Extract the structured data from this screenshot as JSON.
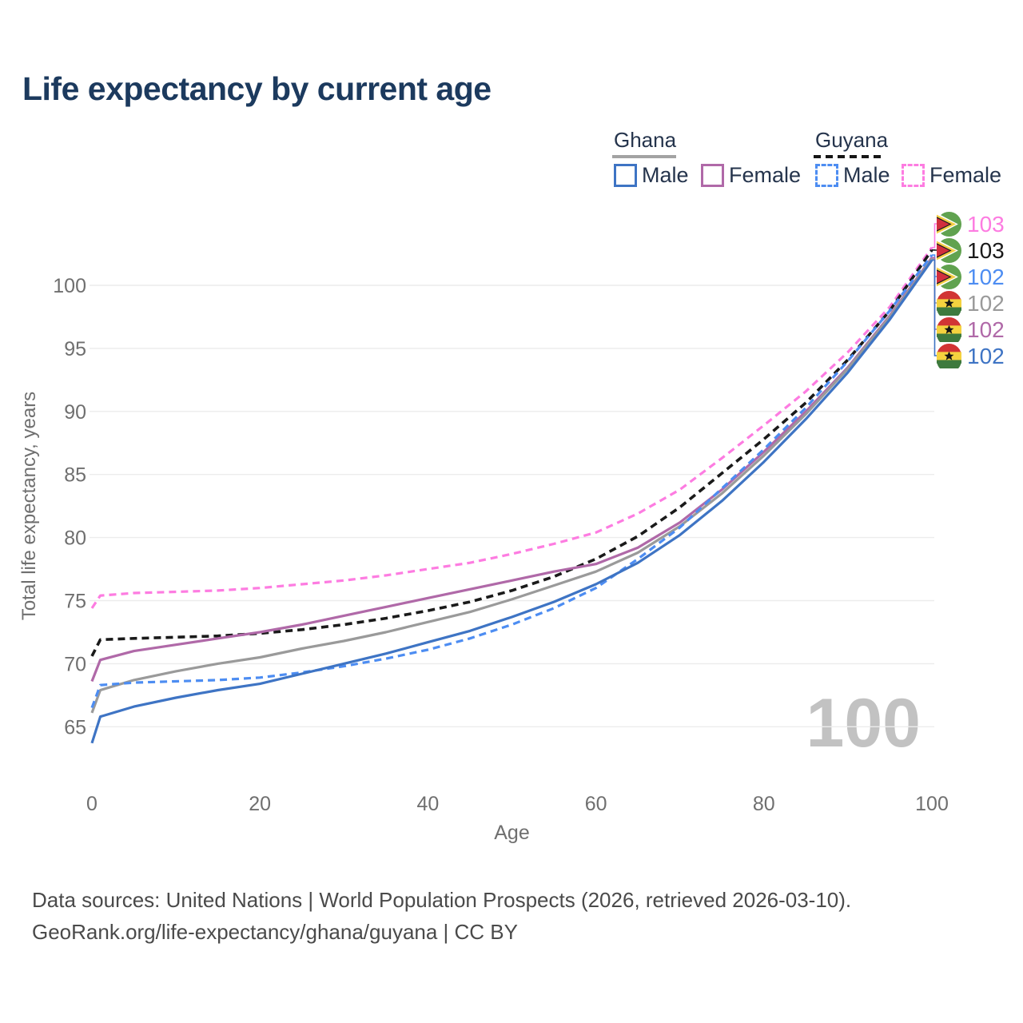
{
  "title": "Life expectancy by current age",
  "legend": {
    "groups": [
      {
        "key": "ghana",
        "label": "Ghana",
        "line_style": "solid",
        "underline_color": "#a3a3a3",
        "items": [
          {
            "series": "ghana_male",
            "label": "Male"
          },
          {
            "series": "ghana_female",
            "label": "Female"
          }
        ]
      },
      {
        "key": "guyana",
        "label": "Guyana",
        "line_style": "dashed",
        "underline_color": "#161616",
        "items": [
          {
            "series": "guyana_male",
            "label": "Male"
          },
          {
            "series": "guyana_female",
            "label": "Female"
          }
        ]
      }
    ]
  },
  "chart_data": {
    "type": "line",
    "title": "Life expectancy by current age",
    "xlabel": "Age",
    "ylabel": "Total life expectancy, years",
    "x_ticks": [
      0,
      20,
      40,
      60,
      80,
      100
    ],
    "y_ticks": [
      65,
      70,
      75,
      80,
      85,
      90,
      95,
      100
    ],
    "xlim": [
      0,
      100
    ],
    "ylim": [
      63,
      104.5
    ],
    "grid": "horizontal-only",
    "legend_position": "top-right",
    "x": [
      0,
      1,
      5,
      10,
      15,
      20,
      25,
      30,
      35,
      40,
      45,
      50,
      55,
      60,
      65,
      70,
      75,
      80,
      85,
      90,
      95,
      100
    ],
    "series": [
      {
        "key": "ghana_male",
        "name": "Ghana Male",
        "country": "Ghana",
        "sex": "Male",
        "color": "#3e74c4",
        "dash": false,
        "values": [
          63.7,
          65.8,
          66.6,
          67.3,
          67.9,
          68.4,
          69.2,
          70.0,
          70.8,
          71.7,
          72.6,
          73.7,
          74.9,
          76.3,
          78.0,
          80.2,
          82.9,
          86.0,
          89.4,
          93.1,
          97.3,
          102.0
        ]
      },
      {
        "key": "ghana_female",
        "name": "Ghana Female",
        "country": "Ghana",
        "sex": "Female",
        "color": "#b069a8",
        "dash": false,
        "values": [
          68.6,
          70.3,
          71.0,
          71.5,
          72.0,
          72.5,
          73.1,
          73.8,
          74.5,
          75.2,
          75.9,
          76.6,
          77.3,
          77.9,
          79.2,
          81.2,
          83.8,
          86.8,
          90.0,
          93.5,
          97.6,
          102.2
        ]
      },
      {
        "key": "ghana_both",
        "name": "Ghana",
        "country": "Ghana",
        "sex": "Both",
        "color": "#9a9a9a",
        "dash": false,
        "values": [
          66.1,
          67.9,
          68.7,
          69.4,
          70.0,
          70.5,
          71.2,
          71.8,
          72.5,
          73.3,
          74.1,
          75.1,
          76.2,
          77.3,
          78.8,
          80.9,
          83.5,
          86.5,
          89.8,
          93.4,
          97.5,
          102.1
        ]
      },
      {
        "key": "guyana_male",
        "name": "Guyana Male",
        "country": "Guyana",
        "sex": "Male",
        "color": "#4d8df2",
        "dash": true,
        "values": [
          66.5,
          68.3,
          68.5,
          68.6,
          68.7,
          68.9,
          69.3,
          69.8,
          70.4,
          71.1,
          72.0,
          73.1,
          74.4,
          76.0,
          78.3,
          80.8,
          83.9,
          87.0,
          90.3,
          94.0,
          98.0,
          102.4
        ]
      },
      {
        "key": "guyana_female",
        "name": "Guyana Female",
        "country": "Guyana",
        "sex": "Female",
        "color": "#fd7ce1",
        "dash": true,
        "values": [
          74.4,
          75.4,
          75.6,
          75.7,
          75.8,
          76.0,
          76.3,
          76.6,
          77.0,
          77.5,
          78.0,
          78.7,
          79.5,
          80.4,
          81.9,
          83.8,
          86.3,
          88.9,
          91.6,
          94.7,
          98.3,
          103.0
        ]
      },
      {
        "key": "guyana_both",
        "name": "Guyana",
        "country": "Guyana",
        "sex": "Both",
        "color": "#1a1a1a",
        "dash": true,
        "values": [
          70.6,
          71.9,
          72.0,
          72.1,
          72.2,
          72.4,
          72.7,
          73.1,
          73.6,
          74.2,
          74.9,
          75.8,
          76.9,
          78.3,
          80.1,
          82.4,
          85.1,
          87.8,
          90.7,
          94.1,
          98.0,
          102.8
        ]
      }
    ]
  },
  "end_labels": [
    {
      "flag": "guyana",
      "value": "103",
      "series": "guyana_female"
    },
    {
      "flag": "guyana",
      "value": "103",
      "series": "guyana_both"
    },
    {
      "flag": "guyana",
      "value": "102",
      "series": "guyana_male"
    },
    {
      "flag": "ghana",
      "value": "102",
      "series": "ghana_both"
    },
    {
      "flag": "ghana",
      "value": "102",
      "series": "ghana_female"
    },
    {
      "flag": "ghana",
      "value": "102",
      "series": "ghana_male"
    }
  ],
  "watermark": "100",
  "footer": {
    "line1": "Data sources: United Nations | World Population Prospects (2026, retrieved 2026-03-10).",
    "line2": "GeoRank.org/life-expectancy/ghana/guyana | CC BY"
  }
}
